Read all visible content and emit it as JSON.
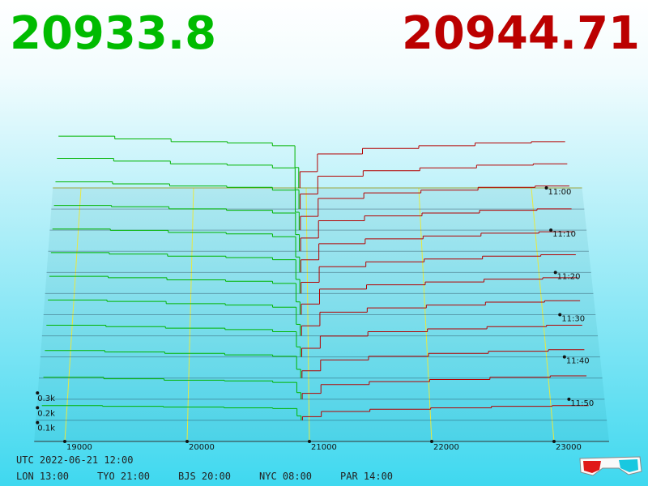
{
  "chart_data": {
    "type": "depth3d",
    "bid": 20933.8,
    "ask": 20944.71,
    "bid_color": "#00b400",
    "ask_color": "#b40000",
    "xlim": [
      18750,
      23450
    ],
    "xticks": [
      19000,
      20000,
      21000,
      22000,
      23000
    ],
    "tlim": [
      0,
      60
    ],
    "tticks": [
      {
        "value": 0,
        "label": "11:00"
      },
      {
        "value": 10,
        "label": "11:10"
      },
      {
        "value": 20,
        "label": "11:20"
      },
      {
        "value": 30,
        "label": "11:30"
      },
      {
        "value": 40,
        "label": "11:40"
      },
      {
        "value": 50,
        "label": "11:50"
      }
    ],
    "zticks": [
      {
        "value": 100,
        "label": "0.1k"
      },
      {
        "value": 200,
        "label": "0.2k"
      },
      {
        "value": 300,
        "label": "0.3k"
      }
    ],
    "bid_levels": [
      18800,
      19300,
      19800,
      20300,
      20700,
      20900
    ],
    "ask_levels": [
      21100,
      21500,
      22000,
      22500,
      23000,
      23300
    ],
    "snapshots": [
      {
        "t": 0,
        "bid_depth": [
          380,
          360,
          340,
          330,
          310,
          150
        ],
        "ask_depth": [
          120,
          250,
          290,
          310,
          330,
          340
        ]
      },
      {
        "t": 5,
        "bid_depth": [
          370,
          350,
          330,
          320,
          300,
          140
        ],
        "ask_depth": [
          110,
          240,
          280,
          300,
          320,
          330
        ]
      },
      {
        "t": 10,
        "bid_depth": [
          350,
          335,
          320,
          310,
          290,
          130
        ],
        "ask_depth": [
          100,
          230,
          270,
          290,
          310,
          320
        ]
      },
      {
        "t": 15,
        "bid_depth": [
          330,
          320,
          305,
          295,
          275,
          120
        ],
        "ask_depth": [
          95,
          220,
          255,
          275,
          295,
          305
        ]
      },
      {
        "t": 20,
        "bid_depth": [
          310,
          300,
          285,
          275,
          255,
          110
        ],
        "ask_depth": [
          90,
          205,
          240,
          260,
          280,
          290
        ]
      },
      {
        "t": 25,
        "bid_depth": [
          290,
          280,
          265,
          255,
          240,
          100
        ],
        "ask_depth": [
          80,
          190,
          225,
          245,
          265,
          275
        ]
      },
      {
        "t": 30,
        "bid_depth": [
          270,
          260,
          245,
          235,
          220,
          90
        ],
        "ask_depth": [
          75,
          180,
          210,
          230,
          250,
          260
        ]
      },
      {
        "t": 35,
        "bid_depth": [
          250,
          240,
          225,
          215,
          200,
          80
        ],
        "ask_depth": [
          70,
          165,
          195,
          215,
          235,
          245
        ]
      },
      {
        "t": 40,
        "bid_depth": [
          220,
          210,
          200,
          190,
          175,
          70
        ],
        "ask_depth": [
          60,
          145,
          175,
          195,
          210,
          220
        ]
      },
      {
        "t": 45,
        "bid_depth": [
          190,
          180,
          170,
          160,
          150,
          60
        ],
        "ask_depth": [
          50,
          125,
          150,
          170,
          185,
          195
        ]
      },
      {
        "t": 50,
        "bid_depth": [
          150,
          140,
          130,
          125,
          115,
          45
        ],
        "ask_depth": [
          40,
          100,
          120,
          135,
          150,
          160
        ]
      },
      {
        "t": 55,
        "bid_depth": [
          100,
          95,
          90,
          85,
          80,
          30
        ],
        "ask_depth": [
          25,
          60,
          75,
          85,
          95,
          100
        ]
      }
    ]
  },
  "footer": {
    "utc": "UTC 2022-06-21 12:00",
    "clocks": [
      "LON 13:00",
      "TYO 21:00",
      "BJS 20:00",
      "NYC 08:00",
      "PAR 14:00"
    ]
  }
}
